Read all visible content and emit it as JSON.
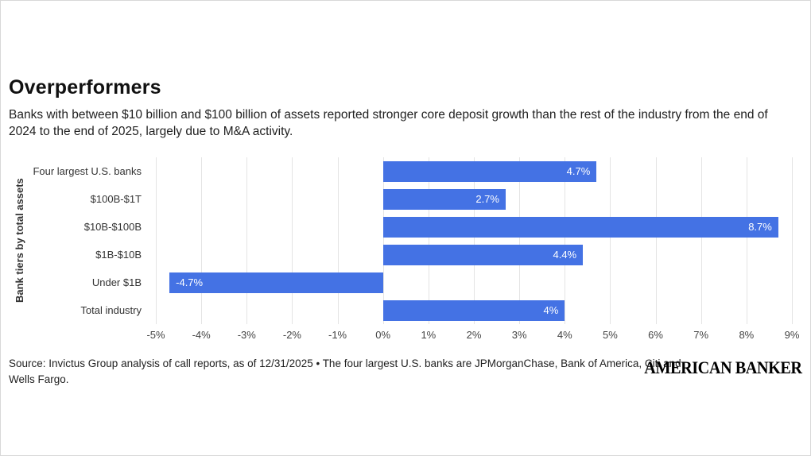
{
  "page": {
    "title": "Overperformers",
    "subtitle": "Banks with between $10 billion and $100 billion of assets reported stronger core deposit growth than the rest of the industry from the end of 2024 to the end of 2025, largely due to M&A activity.",
    "source": "Source: Invictus Group analysis of call reports, as of 12/31/2025 • The four largest U.S. banks are JPMorganChase, Bank of America, Citi and Wells Fargo.",
    "logo": "AMERICAN BANKER"
  },
  "chart_data": {
    "type": "bar",
    "orientation": "horizontal",
    "title": "Overperformers",
    "ylabel": "Bank tiers by total assets",
    "xlabel": "",
    "categories": [
      "Four largest U.S. banks",
      "$100B-$1T",
      "$10B-$100B",
      "$1B-$10B",
      "Under $1B",
      "Total industry"
    ],
    "values": [
      4.7,
      2.7,
      8.7,
      4.4,
      -4.7,
      4.0
    ],
    "value_labels": [
      "4.7%",
      "2.7%",
      "8.7%",
      "4.4%",
      "-4.7%",
      "4%"
    ],
    "xlim": [
      -5,
      9
    ],
    "x_tick_step": 1,
    "x_tick_labels": [
      "-5%",
      "-4%",
      "-3%",
      "-2%",
      "-1%",
      "0%",
      "1%",
      "2%",
      "3%",
      "4%",
      "5%",
      "6%",
      "7%",
      "8%",
      "9%"
    ],
    "bar_color": "#4472e4",
    "grid": true,
    "legend": "none"
  }
}
